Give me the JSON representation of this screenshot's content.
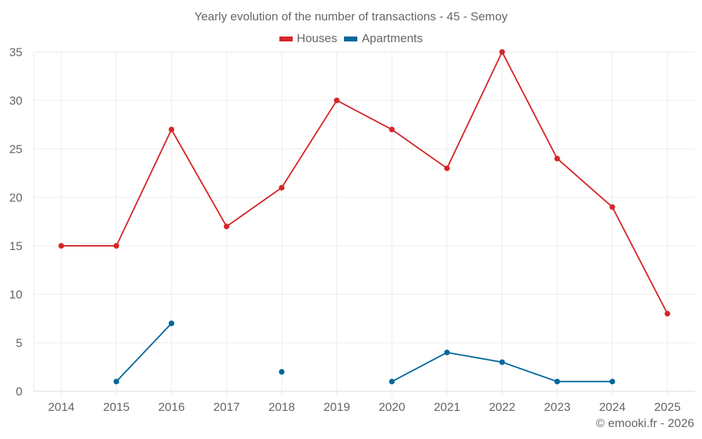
{
  "chart_data": {
    "type": "line",
    "title": "Yearly evolution of the number of transactions - 45 - Semoy",
    "xlabel": "",
    "ylabel": "",
    "categories": [
      "2014",
      "2015",
      "2016",
      "2017",
      "2018",
      "2019",
      "2020",
      "2021",
      "2022",
      "2023",
      "2024",
      "2025"
    ],
    "series": [
      {
        "name": "Houses",
        "color": "#d62728",
        "values": [
          15,
          15,
          27,
          17,
          21,
          30,
          27,
          23,
          35,
          24,
          19,
          8
        ]
      },
      {
        "name": "Apartments",
        "color": "#04679b",
        "values": [
          null,
          1,
          7,
          null,
          2,
          null,
          1,
          4,
          3,
          1,
          1,
          null
        ]
      }
    ],
    "ylim": [
      0,
      35
    ],
    "yticks": [
      0,
      5,
      10,
      15,
      20,
      25,
      30,
      35
    ],
    "grid": true,
    "legend": "top-center"
  },
  "credit": "© emooki.fr - 2026"
}
